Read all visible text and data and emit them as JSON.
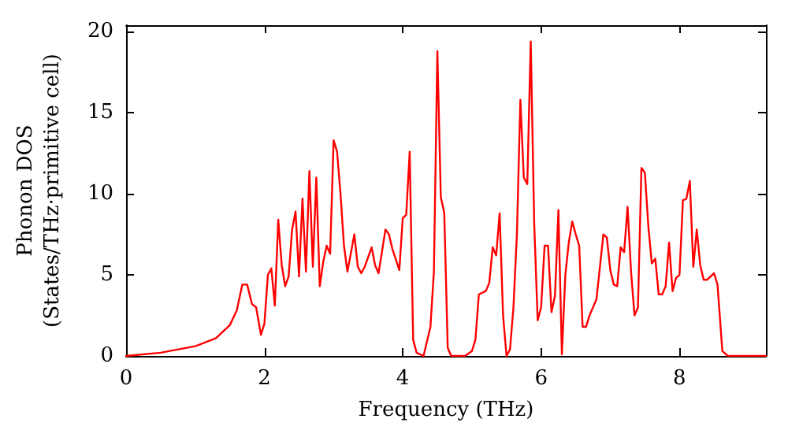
{
  "chart_data": {
    "type": "line",
    "xlabel": "Frequency (THz)",
    "ylabel": "Phonon DOS\n(States/THz·primitive cell)",
    "xlim": [
      0,
      9.25
    ],
    "ylim": [
      0,
      20.4
    ],
    "xticks": [
      0,
      2,
      4,
      6,
      8
    ],
    "yticks": [
      0,
      5,
      10,
      15,
      20
    ],
    "marker": "none",
    "line_style": "solid",
    "series": [
      {
        "color": "#ff0000",
        "x": [
          0,
          0.5,
          1.0,
          1.3,
          1.5,
          1.6,
          1.68,
          1.75,
          1.82,
          1.88,
          1.95,
          2.0,
          2.05,
          2.1,
          2.15,
          2.2,
          2.25,
          2.3,
          2.35,
          2.4,
          2.45,
          2.5,
          2.55,
          2.6,
          2.65,
          2.7,
          2.75,
          2.8,
          2.85,
          2.9,
          2.95,
          3.0,
          3.05,
          3.1,
          3.15,
          3.2,
          3.3,
          3.35,
          3.4,
          3.45,
          3.55,
          3.6,
          3.65,
          3.75,
          3.8,
          3.85,
          3.95,
          4.0,
          4.05,
          4.1,
          4.15,
          4.2,
          4.3,
          4.4,
          4.45,
          4.5,
          4.55,
          4.6,
          4.65,
          4.7,
          4.9,
          5.0,
          5.05,
          5.1,
          5.2,
          5.25,
          5.3,
          5.35,
          5.4,
          5.45,
          5.5,
          5.55,
          5.6,
          5.65,
          5.7,
          5.75,
          5.8,
          5.85,
          5.9,
          5.95,
          6.0,
          6.05,
          6.1,
          6.15,
          6.2,
          6.25,
          6.3,
          6.35,
          6.4,
          6.45,
          6.5,
          6.55,
          6.6,
          6.65,
          6.7,
          6.8,
          6.85,
          6.9,
          6.95,
          7.0,
          7.05,
          7.1,
          7.15,
          7.2,
          7.25,
          7.3,
          7.35,
          7.4,
          7.45,
          7.5,
          7.55,
          7.6,
          7.65,
          7.7,
          7.75,
          7.8,
          7.85,
          7.9,
          7.95,
          8.0,
          8.05,
          8.1,
          8.15,
          8.2,
          8.25,
          8.3,
          8.35,
          8.4,
          8.5,
          8.55,
          8.62,
          8.7,
          9.25
        ],
        "values": [
          0,
          0.2,
          0.6,
          1.1,
          1.9,
          2.8,
          4.4,
          4.4,
          3.2,
          3.0,
          1.3,
          2.0,
          5.0,
          5.4,
          3.1,
          8.4,
          5.6,
          4.3,
          4.9,
          7.8,
          8.9,
          4.9,
          9.7,
          5.2,
          11.4,
          5.5,
          11.0,
          4.3,
          5.8,
          6.8,
          6.3,
          13.3,
          12.6,
          10.0,
          6.8,
          5.2,
          7.5,
          5.5,
          5.1,
          5.5,
          6.7,
          5.6,
          5.1,
          7.8,
          7.5,
          6.6,
          5.3,
          8.5,
          8.7,
          12.6,
          1.0,
          0.2,
          0.0,
          1.8,
          5.2,
          18.8,
          9.8,
          8.8,
          0.5,
          0.0,
          0.0,
          0.3,
          1.0,
          3.8,
          4.0,
          4.5,
          6.7,
          6.2,
          8.8,
          2.5,
          0.0,
          0.4,
          3.0,
          7.5,
          15.8,
          11.0,
          10.6,
          19.4,
          8.2,
          2.2,
          3.0,
          6.8,
          6.8,
          2.7,
          3.7,
          9.0,
          0.1,
          5.0,
          7.0,
          8.3,
          7.5,
          6.8,
          1.8,
          1.8,
          2.5,
          3.5,
          5.5,
          7.5,
          7.3,
          5.3,
          4.4,
          4.3,
          6.7,
          6.4,
          9.2,
          5.2,
          2.5,
          3.0,
          11.6,
          11.3,
          8.0,
          5.7,
          6.0,
          3.8,
          3.8,
          4.3,
          7.0,
          4.0,
          4.8,
          5.0,
          9.6,
          9.7,
          10.8,
          5.5,
          7.8,
          5.6,
          4.7,
          4.7,
          5.1,
          4.4,
          0.3,
          0.0,
          0.0
        ]
      }
    ]
  }
}
